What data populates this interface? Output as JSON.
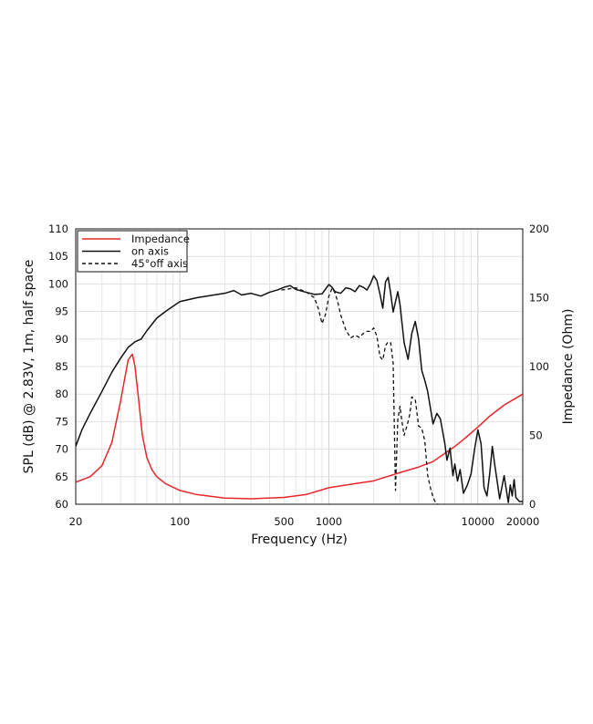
{
  "chart_data": {
    "type": "line",
    "xlabel": "Frequency (Hz)",
    "ylabel_left": "SPL (dB) @ 2.83V, 1m, half space",
    "ylabel_right": "Impedance (Ohm)",
    "x_scale": "log",
    "xlim": [
      20,
      20000
    ],
    "ylim_left": [
      60,
      110
    ],
    "ylim_right": [
      0,
      200
    ],
    "x_ticks": [
      20,
      100,
      500,
      1000,
      10000,
      20000
    ],
    "x_tick_labels": [
      "20",
      "100",
      "500",
      "1000",
      "10000",
      "20000"
    ],
    "y_ticks_left": [
      60,
      65,
      70,
      75,
      80,
      85,
      90,
      95,
      100,
      105,
      110
    ],
    "y_tick_labels_left": [
      "60",
      "65",
      "70",
      "75",
      "80",
      "85",
      "90",
      "95",
      "100",
      "105",
      "110"
    ],
    "y_ticks_right": [
      0,
      50,
      100,
      150,
      200
    ],
    "y_tick_labels_right": [
      "0",
      "50",
      "100",
      "150",
      "200"
    ],
    "grid": true,
    "legend_position": "top-left",
    "series": [
      {
        "name": "Impedance",
        "axis": "right",
        "color": "#e8262b",
        "style": "solid",
        "x": [
          20,
          25,
          30,
          35,
          40,
          45,
          48,
          50,
          53,
          56,
          60,
          65,
          70,
          80,
          100,
          130,
          200,
          300,
          500,
          700,
          1000,
          1500,
          2000,
          3000,
          4000,
          5000,
          6000,
          7000,
          8000,
          10000,
          12000,
          15000,
          20000
        ],
        "values": [
          16,
          20,
          28,
          45,
          75,
          105,
          109,
          100,
          75,
          50,
          34,
          25,
          20,
          15,
          10,
          7,
          4.5,
          4,
          5,
          7,
          12,
          15,
          17,
          23,
          27,
          31,
          37,
          42,
          47,
          56,
          64,
          72,
          80
        ]
      },
      {
        "name": "on axis",
        "axis": "left",
        "color": "#111111",
        "style": "solid",
        "x": [
          20,
          22,
          25,
          30,
          35,
          40,
          45,
          50,
          55,
          60,
          70,
          80,
          100,
          130,
          160,
          200,
          230,
          260,
          300,
          350,
          400,
          450,
          500,
          550,
          600,
          700,
          800,
          900,
          1000,
          1050,
          1100,
          1200,
          1300,
          1400,
          1500,
          1600,
          1700,
          1800,
          1900,
          2000,
          2100,
          2200,
          2300,
          2400,
          2500,
          2600,
          2700,
          2800,
          2900,
          3000,
          3200,
          3400,
          3600,
          3800,
          4000,
          4200,
          4400,
          4600,
          5000,
          5300,
          5600,
          6000,
          6200,
          6500,
          6800,
          7000,
          7300,
          7600,
          8000,
          8500,
          9000,
          9500,
          10000,
          10500,
          11000,
          11500,
          12000,
          12500,
          13000,
          13500,
          14000,
          15000,
          16000,
          16500,
          17000,
          17500,
          18000,
          19000,
          20000
        ],
        "values": [
          70.5,
          73.5,
          76.5,
          80.5,
          84,
          86.5,
          88.5,
          89.5,
          90,
          91.5,
          93.8,
          95,
          96.8,
          97.5,
          97.9,
          98.3,
          98.8,
          98,
          98.3,
          97.8,
          98.5,
          98.9,
          99.4,
          99.7,
          99,
          98.5,
          98.1,
          98.2,
          99.9,
          99.4,
          98.6,
          98.3,
          99.3,
          99.1,
          98.6,
          99.7,
          99.4,
          98.9,
          100,
          101.5,
          100.6,
          98.2,
          95.6,
          100.4,
          101.2,
          98.2,
          94.9,
          96.8,
          98.6,
          96.3,
          89.3,
          86.3,
          91,
          93.2,
          90,
          84.3,
          82.5,
          80.5,
          74.6,
          76.5,
          75.5,
          71,
          68,
          70.2,
          65.2,
          67.3,
          64.2,
          66.3,
          62,
          63.5,
          65.5,
          70,
          73.5,
          71,
          63,
          61.5,
          65.5,
          70.5,
          67,
          64,
          61,
          65.2,
          60.3,
          63.5,
          61.5,
          64.5,
          61.2,
          60.5,
          60.5
        ]
      },
      {
        "name": "45°off axis",
        "axis": "left",
        "color": "#111111",
        "style": "dashed",
        "x": [
          480,
          520,
          560,
          600,
          650,
          700,
          750,
          800,
          850,
          900,
          950,
          1000,
          1050,
          1100,
          1150,
          1200,
          1300,
          1400,
          1500,
          1600,
          1700,
          1800,
          1900,
          2000,
          2100,
          2200,
          2300,
          2400,
          2500,
          2600,
          2700,
          2800,
          2900,
          3000,
          3100,
          3200,
          3400,
          3500,
          3600,
          3800,
          4000,
          4200,
          4400,
          4600,
          4800,
          5000,
          5200,
          5400
        ],
        "values": [
          98.9,
          99,
          99.2,
          99.3,
          98.9,
          98.6,
          98,
          97.5,
          95.5,
          92.8,
          94.5,
          97.8,
          99.2,
          98.4,
          96.6,
          94.4,
          91.6,
          90.2,
          90.7,
          90.3,
          91,
          91.4,
          91.4,
          92,
          90.5,
          86.8,
          86.2,
          88.8,
          89.5,
          89.3,
          85.6,
          62.5,
          75.3,
          77.8,
          74.8,
          72.5,
          75,
          76.5,
          79.5,
          79,
          74.2,
          73.8,
          71.5,
          65.3,
          63,
          61.3,
          60.3,
          60
        ]
      }
    ]
  }
}
